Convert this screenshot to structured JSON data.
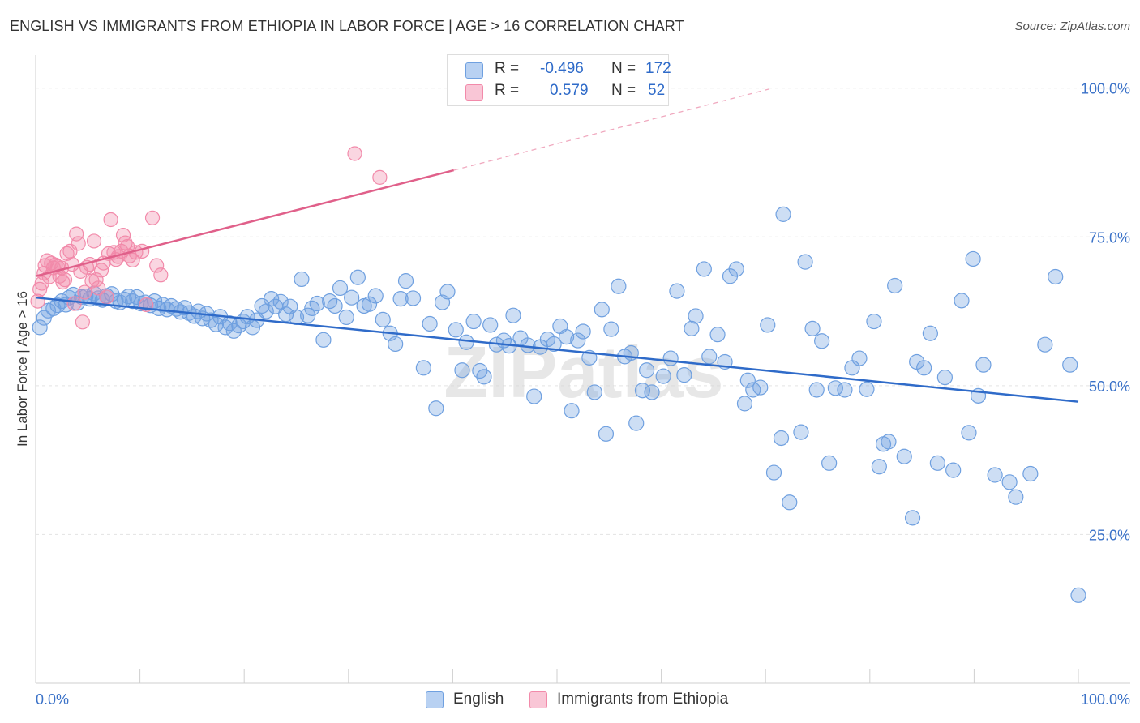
{
  "title": "ENGLISH VS IMMIGRANTS FROM ETHIOPIA IN LABOR FORCE | AGE > 16 CORRELATION CHART",
  "source": "Source: ZipAtlas.com",
  "watermark": "ZIPatlas",
  "colors": {
    "english": "#6fa0e0",
    "english_line": "#2f6bc9",
    "ethiopia": "#f28aaa",
    "ethiopia_line": "#e0608a",
    "tick_label": "#3b72c8"
  },
  "legend": {
    "english": {
      "r_label": "R =",
      "r_value": "-0.496",
      "n_label": "N =",
      "n_value": "172"
    },
    "ethiopia": {
      "r_label": "R =",
      "r_value": "0.579",
      "n_label": "N =",
      "n_value": "52"
    }
  },
  "bottom_legend": {
    "english": "English",
    "ethiopia": "Immigrants from Ethiopia"
  },
  "chart_data": {
    "type": "scatter",
    "ylabel": "In Labor Force | Age > 16",
    "xlim": [
      0,
      100
    ],
    "ylim": [
      0,
      105
    ],
    "x_tick_labels": {
      "min": "0.0%",
      "max": "100.0%"
    },
    "y_ticks": [
      {
        "value": 25,
        "label": "25.0%"
      },
      {
        "value": 50,
        "label": "50.0%"
      },
      {
        "value": 75,
        "label": "75.0%"
      },
      {
        "value": 100,
        "label": "100.0%"
      }
    ],
    "series": [
      {
        "name": "English",
        "trend": {
          "x0": 0,
          "y0": 64.8,
          "x1": 100,
          "y1": 47.3
        },
        "points": [
          [
            0.4,
            59.8
          ],
          [
            0.8,
            61.4
          ],
          [
            1.2,
            62.6
          ],
          [
            1.7,
            63.0
          ],
          [
            2.1,
            63.5
          ],
          [
            2.5,
            64.2
          ],
          [
            2.9,
            63.6
          ],
          [
            3.2,
            64.8
          ],
          [
            3.6,
            65.3
          ],
          [
            4.0,
            63.9
          ],
          [
            4.4,
            64.9
          ],
          [
            4.8,
            65.0
          ],
          [
            5.2,
            64.6
          ],
          [
            5.6,
            65.5
          ],
          [
            6.0,
            64.7
          ],
          [
            6.4,
            64.4
          ],
          [
            6.8,
            65.1
          ],
          [
            7.3,
            65.4
          ],
          [
            7.7,
            64.2
          ],
          [
            8.1,
            64.0
          ],
          [
            8.5,
            64.5
          ],
          [
            8.9,
            65.0
          ],
          [
            9.3,
            64.2
          ],
          [
            9.7,
            64.9
          ],
          [
            10.1,
            63.8
          ],
          [
            10.5,
            64.0
          ],
          [
            11.0,
            63.5
          ],
          [
            11.4,
            64.2
          ],
          [
            11.8,
            63.0
          ],
          [
            12.2,
            63.6
          ],
          [
            12.6,
            62.8
          ],
          [
            13.0,
            63.4
          ],
          [
            13.5,
            62.9
          ],
          [
            13.9,
            62.4
          ],
          [
            14.3,
            63.1
          ],
          [
            14.7,
            62.2
          ],
          [
            15.2,
            61.7
          ],
          [
            15.6,
            62.5
          ],
          [
            16.0,
            61.3
          ],
          [
            16.4,
            62.1
          ],
          [
            16.8,
            61.0
          ],
          [
            17.3,
            60.3
          ],
          [
            17.7,
            61.6
          ],
          [
            18.2,
            59.8
          ],
          [
            18.6,
            60.5
          ],
          [
            19.0,
            59.2
          ],
          [
            19.5,
            60.1
          ],
          [
            19.9,
            60.8
          ],
          [
            20.3,
            61.6
          ],
          [
            20.8,
            59.8
          ],
          [
            21.2,
            61.0
          ],
          [
            21.7,
            63.4
          ],
          [
            22.1,
            62.5
          ],
          [
            22.6,
            64.6
          ],
          [
            23.0,
            63.3
          ],
          [
            23.5,
            64.1
          ],
          [
            24.0,
            62.0
          ],
          [
            24.4,
            63.3
          ],
          [
            25.0,
            61.5
          ],
          [
            25.5,
            67.9
          ],
          [
            26.1,
            61.8
          ],
          [
            26.5,
            63.0
          ],
          [
            27.0,
            63.8
          ],
          [
            27.6,
            57.7
          ],
          [
            28.2,
            64.2
          ],
          [
            28.7,
            63.4
          ],
          [
            29.2,
            66.4
          ],
          [
            29.8,
            61.5
          ],
          [
            30.3,
            64.8
          ],
          [
            30.9,
            68.2
          ],
          [
            31.5,
            63.4
          ],
          [
            32.0,
            63.7
          ],
          [
            32.6,
            65.1
          ],
          [
            33.3,
            61.1
          ],
          [
            34.0,
            58.8
          ],
          [
            34.5,
            57.0
          ],
          [
            35.0,
            64.6
          ],
          [
            35.5,
            67.6
          ],
          [
            36.2,
            64.7
          ],
          [
            37.2,
            53.0
          ],
          [
            37.8,
            60.4
          ],
          [
            38.4,
            46.2
          ],
          [
            39.0,
            64.0
          ],
          [
            39.5,
            65.8
          ],
          [
            40.3,
            59.4
          ],
          [
            40.9,
            52.6
          ],
          [
            41.3,
            57.3
          ],
          [
            42.0,
            60.8
          ],
          [
            42.6,
            52.5
          ],
          [
            43.0,
            51.5
          ],
          [
            43.6,
            60.2
          ],
          [
            44.2,
            56.9
          ],
          [
            44.9,
            57.6
          ],
          [
            45.4,
            56.7
          ],
          [
            45.8,
            61.8
          ],
          [
            46.5,
            58.0
          ],
          [
            47.2,
            56.8
          ],
          [
            47.8,
            48.2
          ],
          [
            48.4,
            56.5
          ],
          [
            49.1,
            57.8
          ],
          [
            49.7,
            57.0
          ],
          [
            50.3,
            60.0
          ],
          [
            50.9,
            58.2
          ],
          [
            51.4,
            45.8
          ],
          [
            52.0,
            57.6
          ],
          [
            52.5,
            59.1
          ],
          [
            53.1,
            54.7
          ],
          [
            53.6,
            48.9
          ],
          [
            54.3,
            62.8
          ],
          [
            54.7,
            41.9
          ],
          [
            55.2,
            59.5
          ],
          [
            55.9,
            66.7
          ],
          [
            56.5,
            54.9
          ],
          [
            57.1,
            55.5
          ],
          [
            57.6,
            43.7
          ],
          [
            58.2,
            49.2
          ],
          [
            58.6,
            52.6
          ],
          [
            59.1,
            48.9
          ],
          [
            60.2,
            51.6
          ],
          [
            60.9,
            54.6
          ],
          [
            61.5,
            65.9
          ],
          [
            62.2,
            51.8
          ],
          [
            62.9,
            59.6
          ],
          [
            63.3,
            61.7
          ],
          [
            64.1,
            69.6
          ],
          [
            64.6,
            54.9
          ],
          [
            65.4,
            58.6
          ],
          [
            66.1,
            54.0
          ],
          [
            66.6,
            68.4
          ],
          [
            67.2,
            69.6
          ],
          [
            68.0,
            47.0
          ],
          [
            68.3,
            50.9
          ],
          [
            68.8,
            49.3
          ],
          [
            69.5,
            49.7
          ],
          [
            70.2,
            60.2
          ],
          [
            70.8,
            35.4
          ],
          [
            71.5,
            41.2
          ],
          [
            71.7,
            78.8
          ],
          [
            72.3,
            30.4
          ],
          [
            73.4,
            42.2
          ],
          [
            73.8,
            70.8
          ],
          [
            74.5,
            59.6
          ],
          [
            74.9,
            49.3
          ],
          [
            75.4,
            57.5
          ],
          [
            76.1,
            37.0
          ],
          [
            76.7,
            49.6
          ],
          [
            77.6,
            49.3
          ],
          [
            78.3,
            53.0
          ],
          [
            79.0,
            54.6
          ],
          [
            79.7,
            49.4
          ],
          [
            80.4,
            60.8
          ],
          [
            80.9,
            36.4
          ],
          [
            81.3,
            40.2
          ],
          [
            81.8,
            40.6
          ],
          [
            82.4,
            66.8
          ],
          [
            83.3,
            38.1
          ],
          [
            84.1,
            27.8
          ],
          [
            84.5,
            54.0
          ],
          [
            85.2,
            53.0
          ],
          [
            85.8,
            58.8
          ],
          [
            86.5,
            37.0
          ],
          [
            87.2,
            51.4
          ],
          [
            88.0,
            35.8
          ],
          [
            88.8,
            64.3
          ],
          [
            89.5,
            42.1
          ],
          [
            89.9,
            71.3
          ],
          [
            90.4,
            48.3
          ],
          [
            90.9,
            53.5
          ],
          [
            92.0,
            35.0
          ],
          [
            93.4,
            33.8
          ],
          [
            94.0,
            31.3
          ],
          [
            95.4,
            35.2
          ],
          [
            96.8,
            56.9
          ],
          [
            97.8,
            68.3
          ],
          [
            99.2,
            53.5
          ],
          [
            100.0,
            14.8
          ]
        ]
      },
      {
        "name": "Immigrants from Ethiopia",
        "trend": {
          "x0": 0,
          "y0": 68.4,
          "x1": 40.1,
          "y1": 86.2,
          "dash_to": {
            "x": 70.7,
            "y": 100.0
          }
        },
        "points": [
          [
            0.2,
            64.2
          ],
          [
            0.4,
            66.2
          ],
          [
            0.6,
            67.2
          ],
          [
            0.8,
            68.9
          ],
          [
            0.9,
            70.2
          ],
          [
            1.1,
            71.0
          ],
          [
            1.3,
            68.3
          ],
          [
            1.5,
            70.6
          ],
          [
            1.7,
            69.8
          ],
          [
            1.9,
            70.3
          ],
          [
            2.1,
            70.0
          ],
          [
            2.3,
            68.4
          ],
          [
            2.5,
            69.8
          ],
          [
            2.6,
            67.4
          ],
          [
            2.8,
            67.8
          ],
          [
            3.0,
            72.2
          ],
          [
            3.3,
            72.6
          ],
          [
            3.5,
            70.4
          ],
          [
            3.7,
            63.8
          ],
          [
            3.9,
            75.5
          ],
          [
            4.1,
            73.9
          ],
          [
            4.3,
            69.2
          ],
          [
            4.5,
            60.7
          ],
          [
            4.7,
            65.7
          ],
          [
            4.9,
            69.9
          ],
          [
            5.2,
            70.4
          ],
          [
            5.4,
            67.6
          ],
          [
            5.6,
            74.3
          ],
          [
            5.8,
            67.8
          ],
          [
            6.0,
            66.4
          ],
          [
            6.3,
            69.4
          ],
          [
            6.5,
            70.6
          ],
          [
            6.8,
            64.9
          ],
          [
            7.0,
            72.2
          ],
          [
            7.2,
            77.9
          ],
          [
            7.5,
            72.4
          ],
          [
            7.7,
            71.2
          ],
          [
            7.9,
            71.7
          ],
          [
            8.2,
            72.6
          ],
          [
            8.4,
            75.3
          ],
          [
            8.6,
            74.0
          ],
          [
            8.8,
            73.4
          ],
          [
            9.0,
            71.8
          ],
          [
            9.3,
            71.1
          ],
          [
            9.6,
            72.4
          ],
          [
            10.2,
            72.6
          ],
          [
            10.6,
            63.6
          ],
          [
            11.2,
            78.2
          ],
          [
            11.6,
            70.2
          ],
          [
            12.0,
            68.6
          ],
          [
            30.6,
            89.0
          ],
          [
            33.0,
            85.0
          ]
        ]
      }
    ]
  }
}
